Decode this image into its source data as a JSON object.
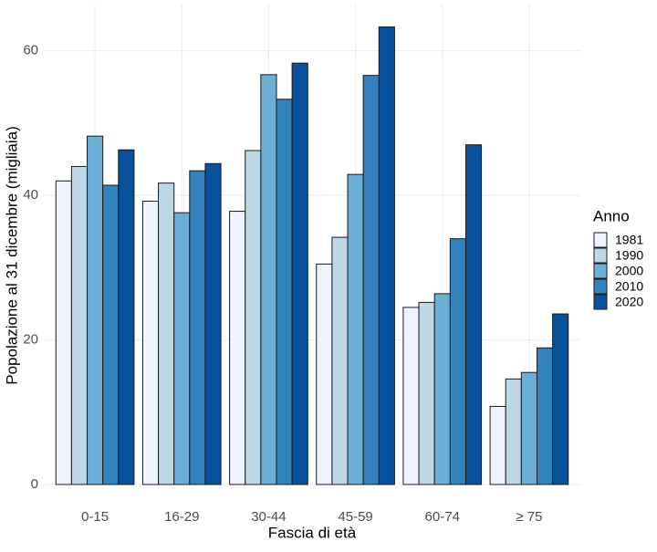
{
  "chart_data": {
    "type": "bar",
    "x_label": "Fascia di età",
    "y_label": "Popolazione al 31 dicembre (migliaia)",
    "legend_title": "Anno",
    "legend": "right",
    "grid": true,
    "categories": [
      "0-15",
      "16-29",
      "30-44",
      "45-59",
      "60-74",
      "≥ 75"
    ],
    "series": [
      {
        "name": "1981",
        "color": "#eff3ff",
        "values": [
          42.0,
          39.2,
          37.8,
          30.5,
          24.5,
          10.8
        ]
      },
      {
        "name": "1990",
        "color": "#bdd7e7",
        "values": [
          44.0,
          41.7,
          46.2,
          34.2,
          25.2,
          14.6
        ]
      },
      {
        "name": "2000",
        "color": "#6baed6",
        "values": [
          48.2,
          37.6,
          56.7,
          42.9,
          26.4,
          15.5
        ]
      },
      {
        "name": "2010",
        "color": "#3182bd",
        "values": [
          41.4,
          43.4,
          53.3,
          56.6,
          34.0,
          18.9
        ]
      },
      {
        "name": "2020",
        "color": "#08519c",
        "values": [
          46.3,
          44.4,
          58.3,
          63.3,
          47.0,
          23.6
        ]
      }
    ],
    "ylim": [
      0,
      66.4
    ],
    "yticks": [
      0,
      20,
      40,
      60
    ]
  }
}
